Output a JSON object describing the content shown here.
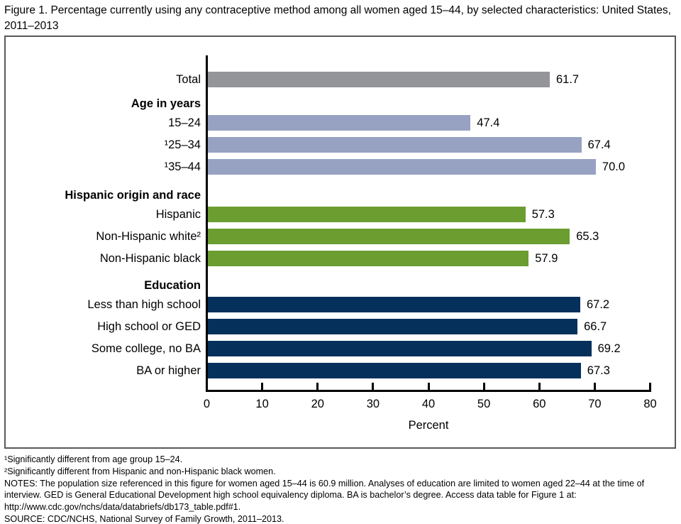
{
  "title": "Figure 1. Percentage currently using any contraceptive method among all women aged 15–44, by selected characteristics: United States, 2011–2013",
  "chart_data": {
    "type": "bar",
    "orientation": "horizontal",
    "xlabel": "Percent",
    "xlim": [
      0,
      80
    ],
    "xticks": [
      0,
      10,
      20,
      30,
      40,
      50,
      60,
      70,
      80
    ],
    "grid": false,
    "legend": "none",
    "value_labels": "end-of-bar, one decimal",
    "groups": [
      {
        "header": null,
        "color": "#949598",
        "bars": [
          {
            "label": "Total",
            "value": 61.7
          }
        ]
      },
      {
        "header": "Age in years",
        "color": "#97a2c3",
        "bars": [
          {
            "label": "15–24",
            "value": 47.4
          },
          {
            "label": "¹25–34",
            "value": 67.4
          },
          {
            "label": "¹35–44",
            "value": 70.0
          }
        ]
      },
      {
        "header": "Hispanic origin and race",
        "color": "#6b9d31",
        "bars": [
          {
            "label": "Hispanic",
            "value": 57.3
          },
          {
            "label": "Non-Hispanic white²",
            "value": 65.3
          },
          {
            "label": "Non-Hispanic black",
            "value": 57.9
          }
        ]
      },
      {
        "header": "Education",
        "color": "#06305c",
        "bars": [
          {
            "label": "Less than high school",
            "value": 67.2
          },
          {
            "label": "High school or GED",
            "value": 66.7
          },
          {
            "label": "Some college, no BA",
            "value": 69.2
          },
          {
            "label": "BA or higher",
            "value": 67.3
          }
        ]
      }
    ]
  },
  "footnotes": [
    "¹Significantly different from age group 15–24.",
    "²Significantly different from Hispanic and non-Hispanic black women.",
    "NOTES: The population size referenced in this figure for women aged 15–44 is 60.9 million. Analyses of education are limited to women aged 22–44 at the time of interview. GED is General Educational Development high school equivalency diploma. BA is bachelor’s degree. Access data table for Figure 1 at: http://www.cdc.gov/nchs/data/databriefs/db173_table.pdf#1.",
    "SOURCE: CDC/NCHS, National Survey of Family Growth, 2011–2013."
  ]
}
